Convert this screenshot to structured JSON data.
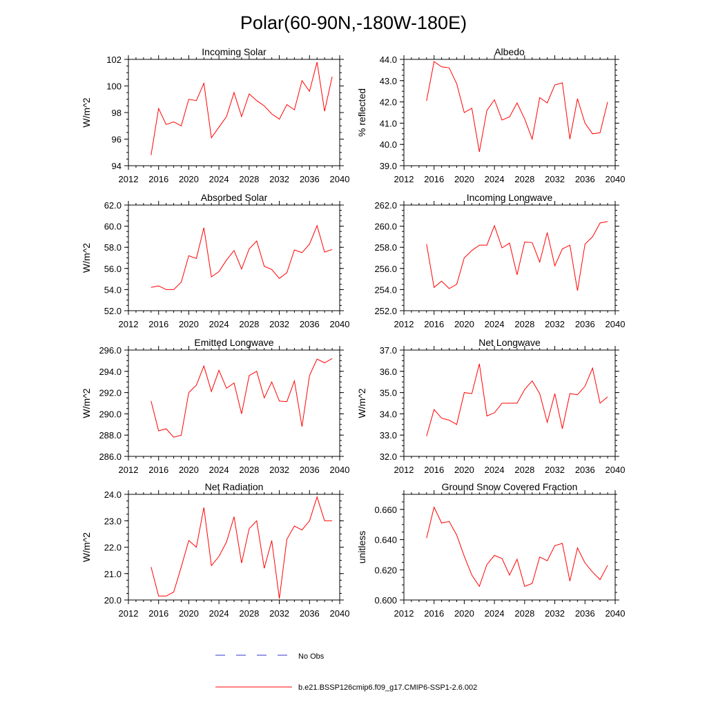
{
  "figure": {
    "title": "Polar(60-90N,-180W-180E)",
    "legend": {
      "position": "bottom-center",
      "entries": [
        {
          "label": "No Obs",
          "color": "#3333cc",
          "style": "dashed"
        },
        {
          "label": "b.e21.BSSP126cmip6.f09_g17.CMIP6-SSP1-2.6.002",
          "color": "#ff0000",
          "style": "solid"
        }
      ]
    }
  },
  "chart_data": [
    {
      "type": "line",
      "title": "Incoming Solar",
      "ylabel": "W/m^2",
      "xlabel": "",
      "xlim": [
        2012,
        2040
      ],
      "ylim": [
        94,
        102
      ],
      "xticks": [
        2012,
        2016,
        2020,
        2024,
        2028,
        2032,
        2036,
        2040
      ],
      "yticks": [
        94,
        96,
        98,
        100,
        102
      ],
      "ytick_labels": [
        "94",
        "96",
        "98",
        "100",
        "102"
      ],
      "x": [
        2015,
        2016,
        2017,
        2018,
        2019,
        2020,
        2021,
        2022,
        2023,
        2024,
        2025,
        2026,
        2027,
        2028,
        2029,
        2030,
        2031,
        2032,
        2033,
        2034,
        2035,
        2036,
        2037,
        2038,
        2039
      ],
      "series": [
        {
          "name": "b.e21.BSSP126cmip6.f09_g17.CMIP6-SSP1-2.6.002",
          "color": "#ff0000",
          "values": [
            94.8,
            98.3,
            97.1,
            97.3,
            97.0,
            99.0,
            98.9,
            100.2,
            96.1,
            96.9,
            97.7,
            99.5,
            97.7,
            99.4,
            98.9,
            98.5,
            97.9,
            97.5,
            98.6,
            98.2,
            100.4,
            99.6,
            101.8,
            98.1,
            100.7
          ]
        }
      ]
    },
    {
      "type": "line",
      "title": "Albedo",
      "ylabel": "% reflected",
      "xlabel": "",
      "xlim": [
        2012,
        2040
      ],
      "ylim": [
        39,
        44
      ],
      "xticks": [
        2012,
        2016,
        2020,
        2024,
        2028,
        2032,
        2036,
        2040
      ],
      "yticks": [
        39,
        40,
        41,
        42,
        43,
        44
      ],
      "ytick_labels": [
        "39.0",
        "40.0",
        "41.0",
        "42.0",
        "43.0",
        "44.0"
      ],
      "x": [
        2015,
        2016,
        2017,
        2018,
        2019,
        2020,
        2021,
        2022,
        2023,
        2024,
        2025,
        2026,
        2027,
        2028,
        2029,
        2030,
        2031,
        2032,
        2033,
        2034,
        2035,
        2036,
        2037,
        2038,
        2039
      ],
      "series": [
        {
          "name": "b.e21.BSSP126cmip6.f09_g17.CMIP6-SSP1-2.6.002",
          "color": "#ff0000",
          "values": [
            42.05,
            43.9,
            43.65,
            43.6,
            42.85,
            41.5,
            41.7,
            39.65,
            41.6,
            42.1,
            41.15,
            41.3,
            41.95,
            41.2,
            40.25,
            42.2,
            41.95,
            42.8,
            42.9,
            40.25,
            42.15,
            41.0,
            40.5,
            40.55,
            42.0
          ]
        }
      ]
    },
    {
      "type": "line",
      "title": "Absorbed Solar",
      "ylabel": "W/m^2",
      "xlabel": "",
      "xlim": [
        2012,
        2040
      ],
      "ylim": [
        52,
        62
      ],
      "xticks": [
        2012,
        2016,
        2020,
        2024,
        2028,
        2032,
        2036,
        2040
      ],
      "yticks": [
        52,
        54,
        56,
        58,
        60,
        62
      ],
      "ytick_labels": [
        "52.0",
        "54.0",
        "56.0",
        "58.0",
        "60.0",
        "62.0"
      ],
      "x": [
        2015,
        2016,
        2017,
        2018,
        2019,
        2020,
        2021,
        2022,
        2023,
        2024,
        2025,
        2026,
        2027,
        2028,
        2029,
        2030,
        2031,
        2032,
        2033,
        2034,
        2035,
        2036,
        2037,
        2038,
        2039
      ],
      "series": [
        {
          "name": "b.e21.BSSP126cmip6.f09_g17.CMIP6-SSP1-2.6.002",
          "color": "#ff0000",
          "values": [
            54.2,
            54.35,
            54.0,
            54.0,
            54.7,
            57.2,
            56.95,
            59.85,
            55.2,
            55.7,
            56.8,
            57.7,
            55.95,
            57.85,
            58.6,
            56.2,
            55.9,
            55.05,
            55.6,
            57.75,
            57.5,
            58.3,
            60.05,
            57.55,
            57.8
          ]
        }
      ]
    },
    {
      "type": "line",
      "title": "Incoming Longwave",
      "ylabel": "",
      "xlabel": "",
      "xlim": [
        2012,
        2040
      ],
      "ylim": [
        252,
        262
      ],
      "xticks": [
        2012,
        2016,
        2020,
        2024,
        2028,
        2032,
        2036,
        2040
      ],
      "yticks": [
        252,
        254,
        256,
        258,
        260,
        262
      ],
      "ytick_labels": [
        "252.0",
        "254.0",
        "256.0",
        "258.0",
        "260.0",
        "262.0"
      ],
      "x": [
        2015,
        2016,
        2017,
        2018,
        2019,
        2020,
        2021,
        2022,
        2023,
        2024,
        2025,
        2026,
        2027,
        2028,
        2029,
        2030,
        2031,
        2032,
        2033,
        2034,
        2035,
        2036,
        2037,
        2038,
        2039
      ],
      "series": [
        {
          "name": "b.e21.BSSP126cmip6.f09_g17.CMIP6-SSP1-2.6.002",
          "color": "#ff0000",
          "values": [
            258.3,
            254.2,
            254.8,
            254.1,
            254.5,
            257.0,
            257.7,
            258.2,
            258.2,
            260.05,
            257.95,
            258.4,
            255.4,
            258.5,
            258.45,
            256.6,
            259.4,
            256.25,
            257.85,
            258.2,
            253.9,
            258.3,
            259.0,
            260.3,
            260.45
          ]
        }
      ]
    },
    {
      "type": "line",
      "title": "Emitted Longwave",
      "ylabel": "W/m^2",
      "xlabel": "",
      "xlim": [
        2012,
        2040
      ],
      "ylim": [
        286,
        296
      ],
      "xticks": [
        2012,
        2016,
        2020,
        2024,
        2028,
        2032,
        2036,
        2040
      ],
      "yticks": [
        286,
        288,
        290,
        292,
        294,
        296
      ],
      "ytick_labels": [
        "286.0",
        "288.0",
        "290.0",
        "292.0",
        "294.0",
        "296.0"
      ],
      "x": [
        2015,
        2016,
        2017,
        2018,
        2019,
        2020,
        2021,
        2022,
        2023,
        2024,
        2025,
        2026,
        2027,
        2028,
        2029,
        2030,
        2031,
        2032,
        2033,
        2034,
        2035,
        2036,
        2037,
        2038,
        2039
      ],
      "series": [
        {
          "name": "b.e21.BSSP126cmip6.f09_g17.CMIP6-SSP1-2.6.002",
          "color": "#ff0000",
          "values": [
            291.2,
            288.4,
            288.6,
            287.8,
            288.0,
            292.0,
            292.7,
            294.5,
            292.1,
            294.1,
            292.4,
            292.9,
            290.0,
            293.6,
            294.0,
            291.5,
            293.0,
            291.2,
            291.15,
            293.1,
            288.8,
            293.6,
            295.15,
            294.8,
            295.2
          ]
        }
      ]
    },
    {
      "type": "line",
      "title": "Net Longwave",
      "ylabel": "W/m^2",
      "xlabel": "",
      "xlim": [
        2012,
        2040
      ],
      "ylim": [
        32,
        37
      ],
      "xticks": [
        2012,
        2016,
        2020,
        2024,
        2028,
        2032,
        2036,
        2040
      ],
      "yticks": [
        32,
        33,
        34,
        35,
        36,
        37
      ],
      "ytick_labels": [
        "32.0",
        "33.0",
        "34.0",
        "35.0",
        "36.0",
        "37.0"
      ],
      "x": [
        2015,
        2016,
        2017,
        2018,
        2019,
        2020,
        2021,
        2022,
        2023,
        2024,
        2025,
        2026,
        2027,
        2028,
        2029,
        2030,
        2031,
        2032,
        2033,
        2034,
        2035,
        2036,
        2037,
        2038,
        2039
      ],
      "series": [
        {
          "name": "b.e21.BSSP126cmip6.f09_g17.CMIP6-SSP1-2.6.002",
          "color": "#ff0000",
          "values": [
            32.95,
            34.2,
            33.8,
            33.7,
            33.5,
            35.0,
            34.95,
            36.35,
            33.9,
            34.05,
            34.5,
            34.5,
            34.5,
            35.15,
            35.55,
            34.95,
            33.6,
            34.95,
            33.3,
            34.95,
            34.9,
            35.3,
            36.15,
            34.5,
            34.8
          ]
        }
      ]
    },
    {
      "type": "line",
      "title": "Net Radiation",
      "ylabel": "W/m^2",
      "xlabel": "",
      "xlim": [
        2012,
        2040
      ],
      "ylim": [
        20,
        24
      ],
      "xticks": [
        2012,
        2016,
        2020,
        2024,
        2028,
        2032,
        2036,
        2040
      ],
      "yticks": [
        20,
        21,
        22,
        23,
        24
      ],
      "ytick_labels": [
        "20.0",
        "21.0",
        "22.0",
        "23.0",
        "24.0"
      ],
      "x": [
        2015,
        2016,
        2017,
        2018,
        2019,
        2020,
        2021,
        2022,
        2023,
        2024,
        2025,
        2026,
        2027,
        2028,
        2029,
        2030,
        2031,
        2032,
        2033,
        2034,
        2035,
        2036,
        2037,
        2038,
        2039
      ],
      "series": [
        {
          "name": "b.e21.BSSP126cmip6.f09_g17.CMIP6-SSP1-2.6.002",
          "color": "#ff0000",
          "values": [
            21.25,
            20.15,
            20.15,
            20.3,
            21.25,
            22.25,
            22.0,
            23.5,
            21.3,
            21.65,
            22.2,
            23.15,
            21.4,
            22.7,
            23.0,
            21.2,
            22.25,
            20.05,
            22.3,
            22.8,
            22.65,
            23.0,
            23.9,
            23.0,
            23.0
          ]
        }
      ]
    },
    {
      "type": "line",
      "title": "Ground Snow Covered Fraction",
      "ylabel": "unitless",
      "xlabel": "",
      "xlim": [
        2012,
        2040
      ],
      "ylim": [
        0.6,
        0.67
      ],
      "xticks": [
        2012,
        2016,
        2020,
        2024,
        2028,
        2032,
        2036,
        2040
      ],
      "yticks": [
        0.6,
        0.62,
        0.64,
        0.66
      ],
      "ytick_labels": [
        "0.600",
        "0.620",
        "0.640",
        "0.660"
      ],
      "x": [
        2015,
        2016,
        2017,
        2018,
        2019,
        2020,
        2021,
        2022,
        2023,
        2024,
        2025,
        2026,
        2027,
        2028,
        2029,
        2030,
        2031,
        2032,
        2033,
        2034,
        2035,
        2036,
        2037,
        2038,
        2039
      ],
      "series": [
        {
          "name": "b.e21.BSSP126cmip6.f09_g17.CMIP6-SSP1-2.6.002",
          "color": "#ff0000",
          "values": [
            0.641,
            0.6615,
            0.651,
            0.652,
            0.643,
            0.629,
            0.6165,
            0.609,
            0.6235,
            0.6295,
            0.6275,
            0.6165,
            0.627,
            0.609,
            0.611,
            0.6285,
            0.626,
            0.636,
            0.6375,
            0.6125,
            0.6345,
            0.6245,
            0.6185,
            0.6135,
            0.623
          ]
        }
      ]
    }
  ]
}
